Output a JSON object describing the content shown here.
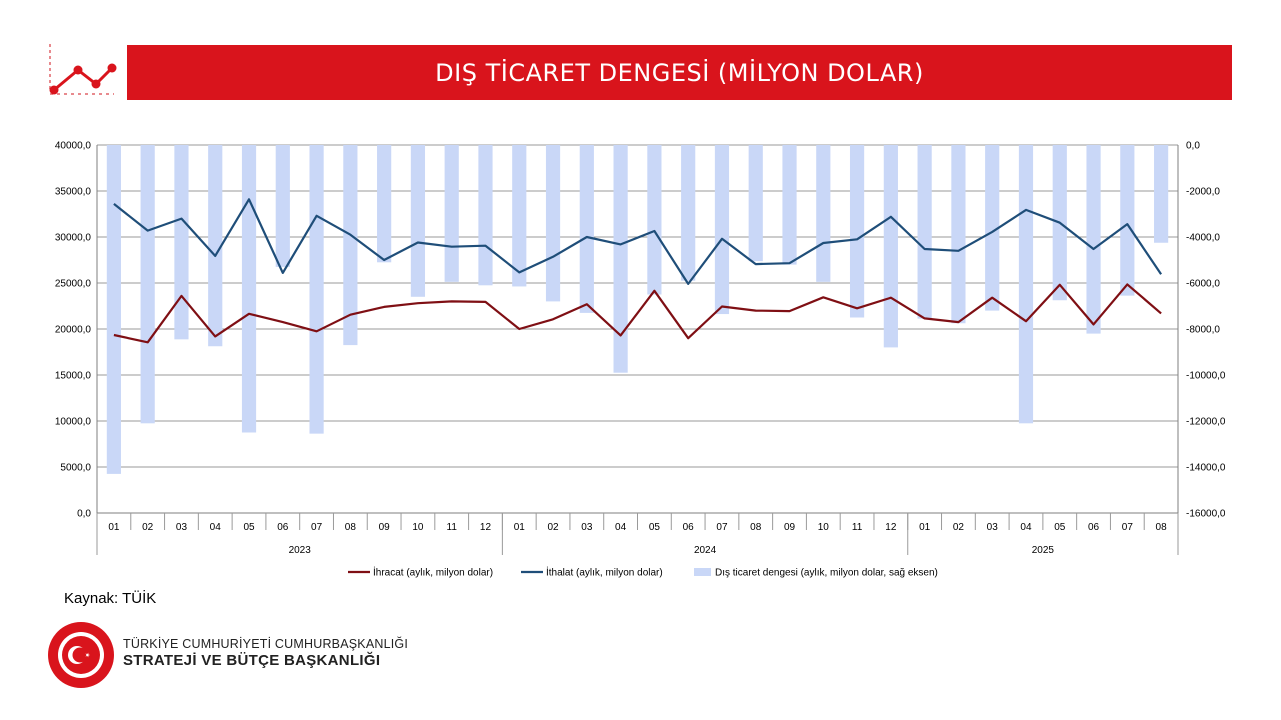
{
  "header": {
    "title": "DIŞ TİCARET DENGESİ (MİLYON DOLAR)"
  },
  "footer": {
    "source": "Kaynak: TÜİK",
    "org_line1": "TÜRKİYE CUMHURİYETİ CUMHURBAŞKANLIĞI",
    "org_line2": "STRATEJİ VE BÜTÇE BAŞKANLIĞI",
    "logo_text": "T.C. CUMHURBAŞKANLIĞI STRATEJİ VE BÜTÇE BAŞKANLIĞI"
  },
  "colors": {
    "accent": "#d9141c",
    "export": "#7f0f14",
    "import": "#1f4e79",
    "balance": "#c9d7f7"
  },
  "chart_data": {
    "type": "bar+line",
    "months": [
      "01",
      "02",
      "03",
      "04",
      "05",
      "06",
      "07",
      "08",
      "09",
      "10",
      "11",
      "12",
      "01",
      "02",
      "03",
      "04",
      "05",
      "06",
      "07",
      "08",
      "09",
      "10",
      "11",
      "12",
      "01",
      "02",
      "03",
      "04",
      "05",
      "06",
      "07",
      "08"
    ],
    "years": [
      {
        "label": "2023",
        "count": 12
      },
      {
        "label": "2024",
        "count": 12
      },
      {
        "label": "2025",
        "count": 8
      }
    ],
    "left_axis": {
      "min": 0,
      "max": 40000,
      "step": 5000,
      "ticks": [
        "40000,0",
        "35000,0",
        "30000,0",
        "25000,0",
        "20000,0",
        "15000,0",
        "10000,0",
        "5000,0",
        "0,0"
      ]
    },
    "right_axis": {
      "min": -16000,
      "max": 0,
      "step": 2000,
      "ticks": [
        "0,0",
        "-2000,0",
        "-4000,0",
        "-6000,0",
        "-8000,0",
        "-10000,0",
        "-12000,0",
        "-14000,0",
        "-16000,0"
      ]
    },
    "series": [
      {
        "name": "İhracat (aylık, milyon dolar)",
        "type": "line",
        "axis": "left",
        "values": [
          19350,
          18550,
          23600,
          19200,
          21650,
          20750,
          19750,
          21550,
          22400,
          22800,
          23000,
          22950,
          20000,
          21050,
          22700,
          19300,
          24150,
          19000,
          22450,
          22000,
          21950,
          23450,
          22250,
          23400,
          21150,
          20750,
          23400,
          20850,
          24800,
          20500,
          24850,
          21700
        ]
      },
      {
        "name": "İthalat (aylık, milyon dolar)",
        "type": "line",
        "axis": "left",
        "values": [
          33600,
          30700,
          32000,
          27950,
          34100,
          26100,
          32300,
          30250,
          27500,
          29400,
          28950,
          29050,
          26150,
          27850,
          30000,
          29200,
          30650,
          24900,
          29800,
          27050,
          27150,
          29350,
          29750,
          32200,
          28700,
          28500,
          30550,
          32950,
          31550,
          28700,
          31400,
          25950
        ]
      },
      {
        "name": "Dış ticaret dengesi (aylık, milyon dolar, sağ eksen)",
        "type": "bar",
        "axis": "right",
        "values": [
          -14300,
          -12100,
          -8450,
          -8750,
          -12500,
          -5300,
          -12550,
          -8700,
          -5100,
          -6600,
          -5950,
          -6100,
          -6150,
          -6800,
          -7300,
          -9900,
          -6500,
          -5900,
          -7350,
          -5050,
          -5200,
          -5950,
          -7500,
          -8800,
          -7550,
          -7750,
          -7200,
          -12100,
          -6750,
          -8200,
          -6550,
          -4250
        ]
      }
    ]
  }
}
